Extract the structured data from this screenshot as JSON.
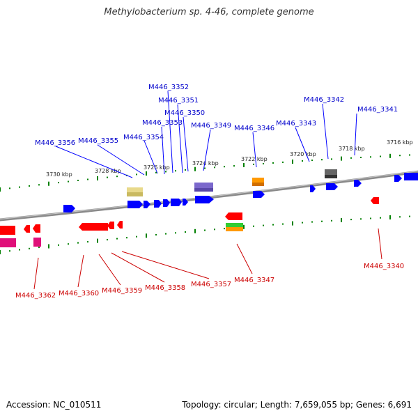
{
  "map": {
    "title": "Methylobacterium sp. 4-46, complete genome",
    "scale_labels": [
      {
        "text": "3716 kbp"
      },
      {
        "text": "3718 kbp"
      },
      {
        "text": "3720 kbp"
      },
      {
        "text": "3722 kbp"
      },
      {
        "text": "3724 kbp"
      },
      {
        "text": "3726 kbp"
      },
      {
        "text": "3728 kbp"
      },
      {
        "text": "3730 kbp"
      }
    ],
    "top_strand_genes": [
      "M446_3341",
      "M446_3342",
      "M446_3343",
      "M446_3346",
      "M446_3349",
      "M446_3350",
      "M446_3351",
      "M446_3352",
      "M446_3353",
      "M446_3354",
      "M446_3355",
      "M446_3356"
    ],
    "bottom_strand_genes": [
      "M446_3340",
      "M446_3347",
      "M446_3357",
      "M446_3358",
      "M446_3359",
      "M446_3360",
      "M446_3362"
    ],
    "colors": {
      "forward": "#0000ff",
      "reverse": "#ff0000",
      "backbone": "#808080",
      "ticks": "#008000",
      "forward_label": "#0000cc",
      "reverse_label": "#cc0000",
      "feature_khaki": "#e8d98a",
      "feature_purple": "#7b68cc",
      "feature_orange": "#ff9900",
      "feature_gray": "#555555",
      "feature_green": "#33cc33",
      "feature_magenta": "#e0107a"
    }
  },
  "footer": {
    "accession": "Accession: NC_010511",
    "summary": "Topology: circular; Length: 7,659,055 bp; Genes: 6,691"
  }
}
